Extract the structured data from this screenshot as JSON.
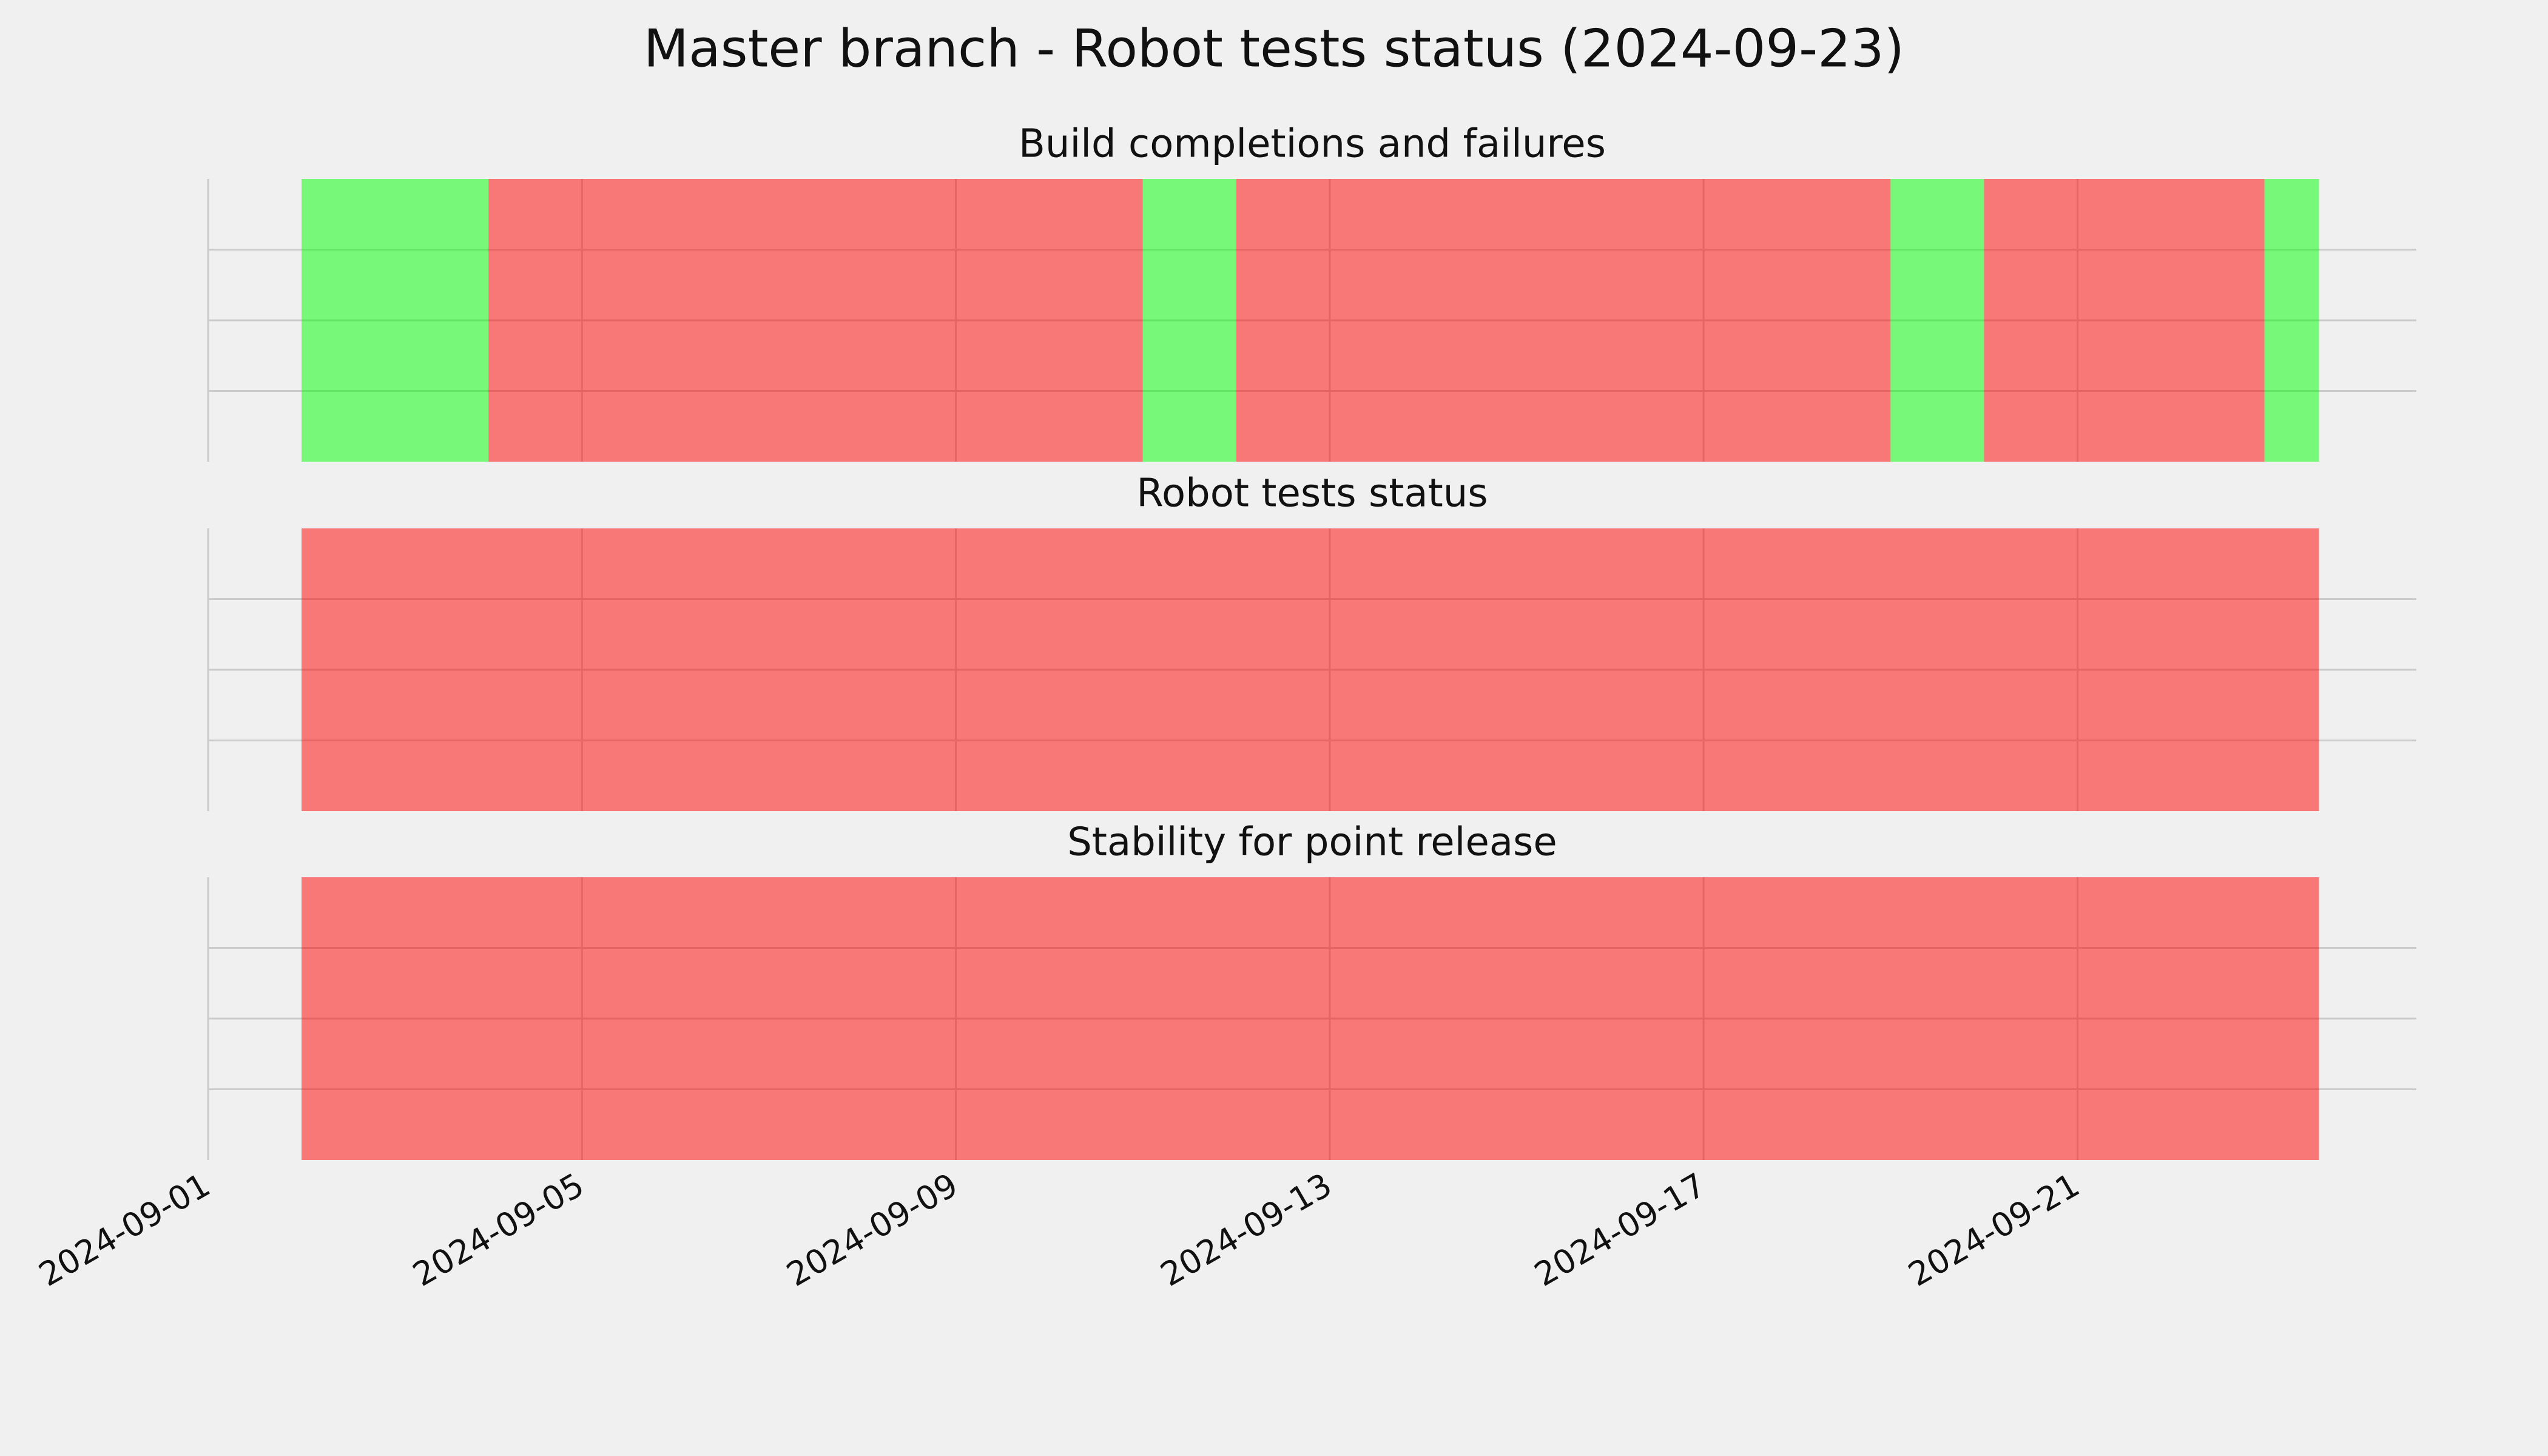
{
  "chart_data": {
    "type": "timeline",
    "title": "Master branch - Robot tests status (2024-09-23)",
    "xlim": [
      "2024-09-01",
      "2024-09-24T15:00"
    ],
    "xticks": [
      "2024-09-01",
      "2024-09-05",
      "2024-09-09",
      "2024-09-13",
      "2024-09-17",
      "2024-09-21"
    ],
    "ylim": [
      0,
      1
    ],
    "yticks": [
      0.25,
      0.5,
      0.75
    ],
    "grid": true,
    "alpha": 0.5,
    "panels": [
      {
        "title": "Build completions and failures",
        "segments": [
          {
            "start": "2024-09-02",
            "end": "2024-09-04",
            "color": "#00ff00"
          },
          {
            "start": "2024-09-04",
            "end": "2024-09-11",
            "color": "#ff0000"
          },
          {
            "start": "2024-09-11",
            "end": "2024-09-12",
            "color": "#00ff00"
          },
          {
            "start": "2024-09-12",
            "end": "2024-09-19",
            "color": "#ff0000"
          },
          {
            "start": "2024-09-19",
            "end": "2024-09-20",
            "color": "#00ff00"
          },
          {
            "start": "2024-09-20",
            "end": "2024-09-23",
            "color": "#ff0000"
          },
          {
            "start": "2024-09-23",
            "end": "2024-09-23T14:00",
            "color": "#00ff00"
          }
        ]
      },
      {
        "title": "Robot tests status",
        "segments": [
          {
            "start": "2024-09-02",
            "end": "2024-09-23T14:00",
            "color": "#ff0000"
          }
        ]
      },
      {
        "title": "Stability for point release",
        "segments": [
          {
            "start": "2024-09-02",
            "end": "2024-09-23T14:00",
            "color": "#ff0000"
          }
        ]
      }
    ]
  }
}
